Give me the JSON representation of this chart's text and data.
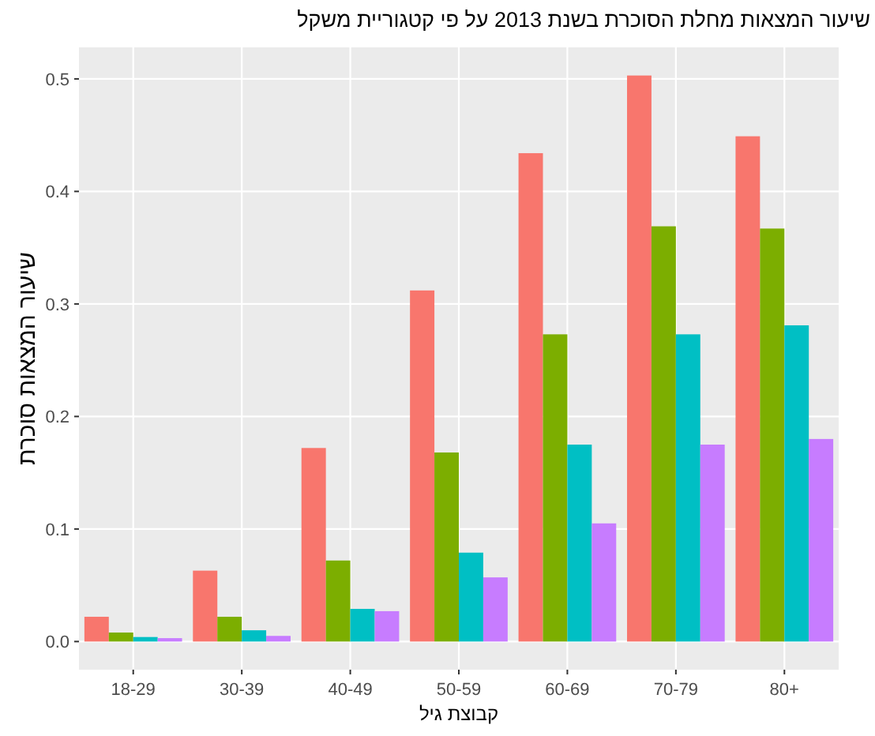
{
  "chart_data": {
    "type": "bar",
    "title": "שיעור המצאות מחלת הסוכרת בשנת 2013 על פי קטגוריית משקל",
    "xlabel": "קבוצת גיל",
    "ylabel": "שיעור המצאות סוכרת",
    "categories": [
      "18-29",
      "30-39",
      "40-49",
      "50-59",
      "60-69",
      "70-79",
      "80+"
    ],
    "series": [
      {
        "color": "#f8766d",
        "values": [
          0.022,
          0.063,
          0.172,
          0.312,
          0.434,
          0.503,
          0.449
        ]
      },
      {
        "color": "#7cae00",
        "values": [
          0.008,
          0.022,
          0.072,
          0.168,
          0.273,
          0.369,
          0.367
        ]
      },
      {
        "color": "#00bfc4",
        "values": [
          0.004,
          0.01,
          0.029,
          0.079,
          0.175,
          0.273,
          0.281
        ]
      },
      {
        "color": "#c77cff",
        "values": [
          0.003,
          0.005,
          0.027,
          0.057,
          0.105,
          0.175,
          0.18
        ]
      }
    ],
    "ylim": [
      -0.025,
      0.528
    ],
    "yticks": [
      {
        "value": 0,
        "label": "0.0"
      },
      0.1,
      0.2,
      0.3,
      0.4,
      0.5
    ],
    "grid": true
  }
}
